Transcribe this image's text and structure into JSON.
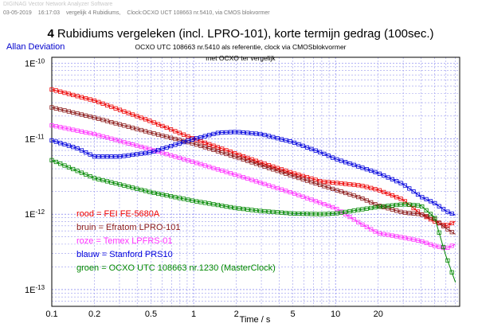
{
  "header": {
    "software": "DIGINAG Vector Network Analyzer Software",
    "date": "03-05-2019",
    "time": "16:17:03",
    "file": "vergelijk 4 Rubidiums,",
    "setup": "Clock:OCXO UCT 108663 nr.5410, via CMOS blokvormer"
  },
  "chart_data": {
    "type": "line",
    "title_bold": "4",
    "title": "Rubidiums vergeleken (incl. LPRO-101), korte termijn gedrag (100sec.)",
    "subtitle1": "OCXO UTC 108663 nr.5410 als referentie,  clock via CMOSblokvormer",
    "subtitle2": "met OCXO ter vergelijk",
    "ylabel": "Allan Deviation",
    "xlabel": "Time / s",
    "xscale": "log",
    "yscale": "log",
    "xlim": [
      0.1,
      75
    ],
    "ylim": [
      6e-14,
      1.2e-10
    ],
    "grid": true,
    "legend_position": "bottom-left",
    "xticks": [
      {
        "v": 0.1,
        "label": "0.1"
      },
      {
        "v": 0.2,
        "label": "0.2"
      },
      {
        "v": 0.5,
        "label": "0.5"
      },
      {
        "v": 1,
        "label": "1"
      },
      {
        "v": 2,
        "label": "2"
      },
      {
        "v": 5,
        "label": "5"
      },
      {
        "v": 10,
        "label": "10"
      },
      {
        "v": 20,
        "label": "20"
      }
    ],
    "yticks": [
      {
        "v": 1e-10,
        "m": "1E",
        "e": "-10"
      },
      {
        "v": 1e-11,
        "m": "1E",
        "e": "-11"
      },
      {
        "v": 1e-12,
        "m": "1E",
        "e": "-12"
      },
      {
        "v": 1e-13,
        "m": "1E",
        "e": "-13"
      }
    ],
    "series": [
      {
        "name": "rood  = FEI FE-5680A",
        "color": "#ee0000",
        "x": [
          0.1,
          0.2,
          0.5,
          1,
          2,
          3,
          5,
          8,
          10,
          15,
          20,
          30,
          40,
          50,
          60,
          70
        ],
        "y": [
          4.5e-11,
          3.2e-11,
          1.7e-11,
          1e-11,
          6.3e-12,
          4.8e-12,
          3.5e-12,
          2.7e-12,
          2.6e-12,
          2.4e-12,
          2.1e-12,
          1.55e-12,
          1e-12,
          8e-13,
          7e-13,
          8e-13
        ]
      },
      {
        "name": "bruin = Efratom LPRO-101",
        "color": "#8b1a1a",
        "x": [
          0.1,
          0.2,
          0.5,
          1,
          2,
          5,
          10,
          15,
          20,
          30,
          40,
          50,
          60,
          70
        ],
        "y": [
          2.6e-11,
          1.9e-11,
          1.2e-11,
          8.6e-12,
          5.7e-12,
          3.2e-12,
          2.1e-12,
          1.65e-12,
          1.3e-12,
          1.05e-12,
          1e-12,
          8.6e-13,
          6.5e-13,
          5.4e-13
        ]
      },
      {
        "name": "roze = Temex LPFRS-01",
        "color": "#ff33ff",
        "x": [
          0.1,
          0.2,
          0.5,
          1,
          2,
          5,
          10,
          15,
          20,
          30,
          40,
          50,
          60,
          70
        ],
        "y": [
          1.5e-11,
          1.15e-11,
          7.2e-12,
          4.9e-12,
          3.3e-12,
          1.9e-12,
          1.2e-12,
          7.5e-13,
          5.6e-13,
          4.9e-13,
          4.4e-13,
          3.8e-13,
          3.5e-13,
          4e-13
        ]
      },
      {
        "name": "blauw = Stanford PRS10",
        "color": "#0000dd",
        "x": [
          0.1,
          0.15,
          0.2,
          0.3,
          0.5,
          1,
          1.5,
          2,
          3,
          5,
          8,
          10,
          15,
          20,
          30,
          40,
          50,
          60,
          70
        ],
        "y": [
          9.5e-12,
          7.5e-12,
          5.8e-12,
          5.8e-12,
          6.6e-12,
          9.9e-12,
          1.2e-11,
          1.23e-11,
          1.15e-11,
          9e-12,
          6.5e-12,
          5.4e-12,
          4.2e-12,
          3.5e-12,
          2.5e-12,
          1.7e-12,
          1.4e-12,
          1.1e-12,
          9.7e-13
        ]
      },
      {
        "name": "groen = OCXO UTC 108663 nr.1230 (MasterClock)",
        "color": "#008800",
        "x": [
          0.1,
          0.2,
          0.5,
          1,
          2,
          3,
          5,
          8,
          10,
          15,
          20,
          30,
          40,
          50,
          60,
          70
        ],
        "y": [
          5.2e-12,
          3e-12,
          1.95e-12,
          1.5e-12,
          1.2e-12,
          1.1e-12,
          1.02e-12,
          1e-12,
          1.02e-12,
          1.15e-12,
          1.25e-12,
          1.35e-12,
          1.3e-12,
          9e-13,
          2.8e-13,
          1.25e-13
        ]
      }
    ]
  }
}
